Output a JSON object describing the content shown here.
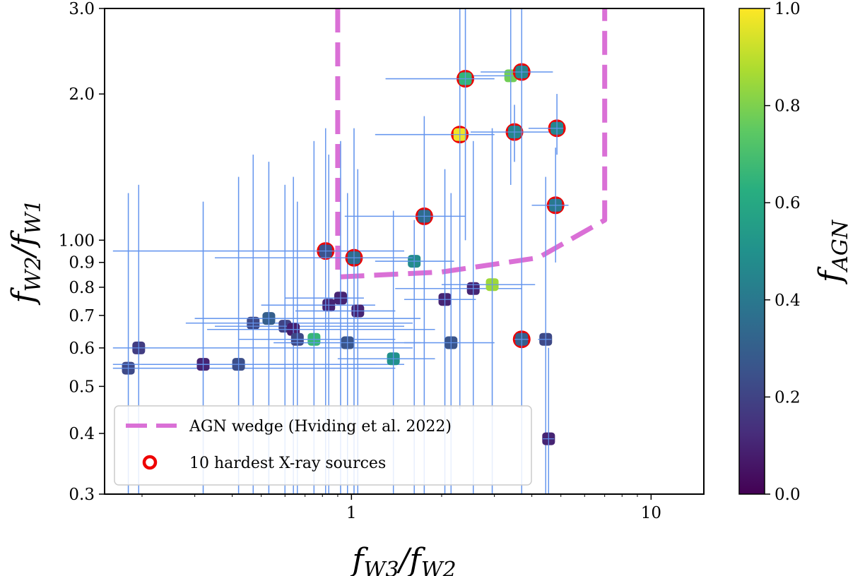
{
  "chart_data": {
    "type": "scatter",
    "xscale": "log",
    "yscale": "log",
    "xlim": [
      0.15,
      15
    ],
    "ylim": [
      0.3,
      3.0
    ],
    "xlabel": "f_{W3}/f_{W2}",
    "xlabel_main": "f",
    "xlabel_sub1": "W3",
    "xlabel_slash": "/",
    "xlabel_sub2": "W2",
    "ylabel": "f_{W2}/f_{W1}",
    "ylabel_main": "f",
    "ylabel_sub1": "W2",
    "ylabel_slash": "/",
    "ylabel_sub2": "W1",
    "x_ticks": [
      {
        "value": 1,
        "label": "1"
      },
      {
        "value": 10,
        "label": "10"
      }
    ],
    "y_ticks": [
      {
        "value": 0.3,
        "label": "0.3"
      },
      {
        "value": 0.4,
        "label": "0.4"
      },
      {
        "value": 0.5,
        "label": "0.5"
      },
      {
        "value": 0.6,
        "label": "0.6"
      },
      {
        "value": 0.7,
        "label": "0.7"
      },
      {
        "value": 0.8,
        "label": "0.8"
      },
      {
        "value": 0.9,
        "label": "0.9"
      },
      {
        "value": 1.0,
        "label": "1.00"
      },
      {
        "value": 2.0,
        "label": "2.0"
      },
      {
        "value": 3.0,
        "label": "3.0"
      }
    ],
    "colorbar": {
      "label": "f_{AGN}",
      "label_main": "f",
      "label_sub": "AGN",
      "colormap": "viridis",
      "range": [
        0.0,
        1.0
      ],
      "ticks": [
        {
          "value": 0.0,
          "label": "0.0"
        },
        {
          "value": 0.2,
          "label": "0.2"
        },
        {
          "value": 0.4,
          "label": "0.4"
        },
        {
          "value": 0.6,
          "label": "0.6"
        },
        {
          "value": 0.8,
          "label": "0.8"
        },
        {
          "value": 1.0,
          "label": "1.0"
        }
      ]
    },
    "wedge": {
      "name": "AGN wedge (Hviding et al. 2022)",
      "color": "#da70d6",
      "points": [
        [
          0.9,
          3.0
        ],
        [
          0.9,
          0.84
        ],
        [
          2.0,
          0.86
        ],
        [
          4.2,
          0.92
        ],
        [
          7.0,
          1.1
        ],
        [
          7.0,
          3.0
        ]
      ]
    },
    "hard_xray": {
      "name": "10 hardest X-ray sources",
      "color": "#ee0000"
    },
    "errorbar_color": "#6495ed",
    "points": [
      {
        "x": 0.18,
        "y": 0.545,
        "fagn": 0.22,
        "xerr": [
          0.16,
          1.4
        ],
        "yerr": [
          0.3,
          1.25
        ],
        "hard": false
      },
      {
        "x": 0.195,
        "y": 0.6,
        "fagn": 0.18,
        "xerr": [
          0.16,
          1.6
        ],
        "yerr": [
          0.3,
          1.3
        ],
        "hard": false
      },
      {
        "x": 0.32,
        "y": 0.555,
        "fagn": 0.1,
        "xerr": [
          0.16,
          1.2
        ],
        "yerr": [
          0.3,
          1.2
        ],
        "hard": false
      },
      {
        "x": 0.42,
        "y": 0.555,
        "fagn": 0.24,
        "xerr": [
          0.2,
          1.5
        ],
        "yerr": [
          0.3,
          1.35
        ],
        "hard": false
      },
      {
        "x": 0.47,
        "y": 0.675,
        "fagn": 0.22,
        "xerr": [
          0.28,
          1.6
        ],
        "yerr": [
          0.3,
          1.5
        ],
        "hard": false
      },
      {
        "x": 0.53,
        "y": 0.69,
        "fagn": 0.3,
        "xerr": [
          0.3,
          1.7
        ],
        "yerr": [
          0.3,
          1.45
        ],
        "hard": false
      },
      {
        "x": 0.6,
        "y": 0.665,
        "fagn": 0.2,
        "xerr": [
          0.35,
          1.5
        ],
        "yerr": [
          0.3,
          1.3
        ],
        "hard": false
      },
      {
        "x": 0.64,
        "y": 0.655,
        "fagn": 0.08,
        "xerr": [
          0.33,
          1.9
        ],
        "yerr": [
          0.3,
          1.35
        ],
        "hard": false
      },
      {
        "x": 0.66,
        "y": 0.625,
        "fagn": 0.22,
        "xerr": [
          0.42,
          1.4
        ],
        "yerr": [
          0.3,
          1.2
        ],
        "hard": false
      },
      {
        "x": 0.75,
        "y": 0.625,
        "fagn": 0.66,
        "xerr": [
          0.5,
          1.1
        ],
        "yerr": [
          0.3,
          1.6
        ],
        "hard": false
      },
      {
        "x": 0.84,
        "y": 0.735,
        "fagn": 0.1,
        "xerr": [
          0.5,
          1.2
        ],
        "yerr": [
          0.3,
          1.5
        ],
        "hard": false
      },
      {
        "x": 0.92,
        "y": 0.76,
        "fagn": 0.1,
        "xerr": [
          0.6,
          1.1
        ],
        "yerr": [
          0.3,
          1.6
        ],
        "hard": false
      },
      {
        "x": 0.97,
        "y": 0.615,
        "fagn": 0.26,
        "xerr": [
          0.55,
          1.7
        ],
        "yerr": [
          0.3,
          1.25
        ],
        "hard": false
      },
      {
        "x": 1.05,
        "y": 0.715,
        "fagn": 0.1,
        "xerr": [
          0.65,
          1.4
        ],
        "yerr": [
          0.3,
          1.4
        ],
        "hard": false
      },
      {
        "x": 1.38,
        "y": 0.57,
        "fagn": 0.5,
        "xerr": [
          0.9,
          1.9
        ],
        "yerr": [
          0.3,
          1.15
        ],
        "hard": false
      },
      {
        "x": 1.62,
        "y": 0.905,
        "fagn": 0.48,
        "xerr": [
          1.2,
          2.2
        ],
        "yerr": [
          0.3,
          1.1
        ],
        "hard": false
      },
      {
        "x": 2.05,
        "y": 0.755,
        "fagn": 0.1,
        "xerr": [
          1.5,
          2.6
        ],
        "yerr": [
          0.3,
          1.4
        ],
        "hard": false
      },
      {
        "x": 2.15,
        "y": 0.615,
        "fagn": 0.26,
        "xerr": [
          1.5,
          3.0
        ],
        "yerr": [
          0.3,
          1.25
        ],
        "hard": false
      },
      {
        "x": 2.55,
        "y": 0.795,
        "fagn": 0.1,
        "xerr": [
          1.4,
          3.7
        ],
        "yerr": [
          0.3,
          1.6
        ],
        "hard": false
      },
      {
        "x": 2.95,
        "y": 0.81,
        "fagn": 0.85,
        "xerr": [
          2.0,
          4.1
        ],
        "yerr": [
          0.3,
          1.7
        ],
        "hard": false
      },
      {
        "x": 3.4,
        "y": 2.18,
        "fagn": 0.78,
        "xerr": [
          2.5,
          3.8
        ],
        "yerr": [
          1.3,
          3.0
        ],
        "hard": false
      },
      {
        "x": 4.45,
        "y": 0.625,
        "fagn": 0.22,
        "xerr": [
          4.2,
          4.65
        ],
        "yerr": [
          0.3,
          1.35
        ],
        "hard": false
      },
      {
        "x": 4.55,
        "y": 0.39,
        "fagn": 0.1,
        "xerr": [
          4.35,
          4.75
        ],
        "yerr": [
          0.3,
          0.6
        ],
        "hard": false
      },
      {
        "x": 0.82,
        "y": 0.95,
        "fagn": 0.25,
        "xerr": [
          0.16,
          1.5
        ],
        "yerr": [
          0.3,
          1.7
        ],
        "hard": true
      },
      {
        "x": 1.02,
        "y": 0.92,
        "fagn": 0.35,
        "xerr": [
          0.35,
          1.6
        ],
        "yerr": [
          0.3,
          1.7
        ],
        "hard": true
      },
      {
        "x": 1.75,
        "y": 1.12,
        "fagn": 0.35,
        "xerr": [
          0.95,
          2.4
        ],
        "yerr": [
          0.3,
          1.8
        ],
        "hard": true
      },
      {
        "x": 2.3,
        "y": 1.65,
        "fagn": 0.98,
        "xerr": [
          1.2,
          3.0
        ],
        "yerr": [
          0.45,
          3.0
        ],
        "hard": true
      },
      {
        "x": 2.4,
        "y": 2.15,
        "fagn": 0.65,
        "xerr": [
          1.3,
          3.0
        ],
        "yerr": [
          1.0,
          3.0
        ],
        "hard": true
      },
      {
        "x": 3.5,
        "y": 1.67,
        "fagn": 0.45,
        "xerr": [
          2.5,
          4.7
        ],
        "yerr": [
          1.45,
          1.9
        ],
        "hard": true
      },
      {
        "x": 3.7,
        "y": 2.22,
        "fagn": 0.45,
        "xerr": [
          2.7,
          4.7
        ],
        "yerr": [
          1.6,
          3.0
        ],
        "hard": true
      },
      {
        "x": 4.85,
        "y": 1.7,
        "fagn": 0.45,
        "xerr": [
          3.9,
          5.1
        ],
        "yerr": [
          1.5,
          2.0
        ],
        "hard": true
      },
      {
        "x": 4.8,
        "y": 1.18,
        "fagn": 0.4,
        "xerr": [
          4.0,
          5.3
        ],
        "yerr": [
          0.9,
          1.55
        ],
        "hard": true
      },
      {
        "x": 3.7,
        "y": 0.625,
        "fagn": 0.3,
        "xerr": [
          3.5,
          3.9
        ],
        "yerr": [
          0.3,
          1.6
        ],
        "hard": true
      }
    ]
  }
}
